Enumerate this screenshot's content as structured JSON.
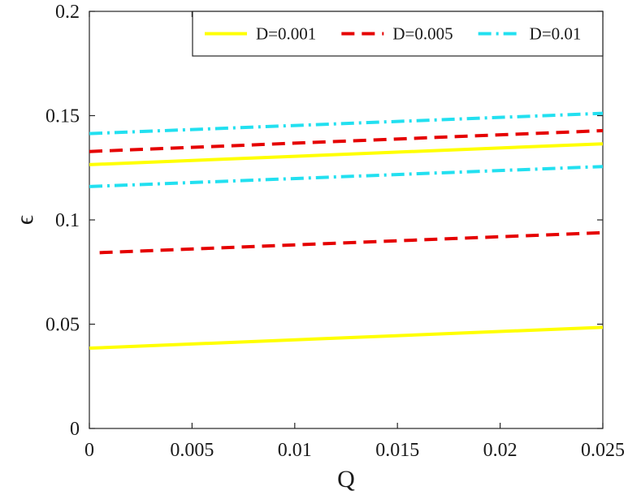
{
  "chart_data": {
    "type": "line",
    "xlabel": "Q",
    "ylabel": "ϵ",
    "xlim": [
      0,
      0.025
    ],
    "ylim": [
      0,
      0.2
    ],
    "xticks": [
      {
        "value": 0,
        "label": "0"
      },
      {
        "value": 0.005,
        "label": "0.005"
      },
      {
        "value": 0.01,
        "label": "0.01"
      },
      {
        "value": 0.015,
        "label": "0.015"
      },
      {
        "value": 0.02,
        "label": "0.02"
      },
      {
        "value": 0.025,
        "label": "0.025"
      }
    ],
    "yticks": [
      {
        "value": 0,
        "label": "0"
      },
      {
        "value": 0.05,
        "label": "0.05"
      },
      {
        "value": 0.1,
        "label": "0.1"
      },
      {
        "value": 0.15,
        "label": "0.15"
      },
      {
        "value": 0.2,
        "label": "0.2"
      }
    ],
    "grid": false,
    "legend_position": "top-right",
    "series": [
      {
        "name": "D=0.001",
        "color": "#ffff00",
        "dash": "solid",
        "in_legend": true,
        "x": [
          0,
          0.025
        ],
        "y": [
          0.0385,
          0.0485
        ]
      },
      {
        "name": "D=0.001",
        "color": "#ffff00",
        "dash": "solid",
        "in_legend": false,
        "x": [
          0,
          0.025
        ],
        "y": [
          0.1265,
          0.1365
        ]
      },
      {
        "name": "D=0.005",
        "color": "#e50000",
        "dash": "dashed",
        "in_legend": true,
        "x": [
          0.0005,
          0.025
        ],
        "y": [
          0.0843,
          0.0939
        ]
      },
      {
        "name": "D=0.005",
        "color": "#e50000",
        "dash": "dashed",
        "in_legend": false,
        "x": [
          0,
          0.025
        ],
        "y": [
          0.1328,
          0.1428
        ]
      },
      {
        "name": "D=0.01",
        "color": "#22e0f0",
        "dash": "dashdot",
        "in_legend": true,
        "x": [
          0,
          0.025
        ],
        "y": [
          0.116,
          0.1256
        ]
      },
      {
        "name": "D=0.01",
        "color": "#22e0f0",
        "dash": "dashdot",
        "in_legend": false,
        "x": [
          0,
          0.025
        ],
        "y": [
          0.1414,
          0.1511
        ]
      }
    ]
  }
}
